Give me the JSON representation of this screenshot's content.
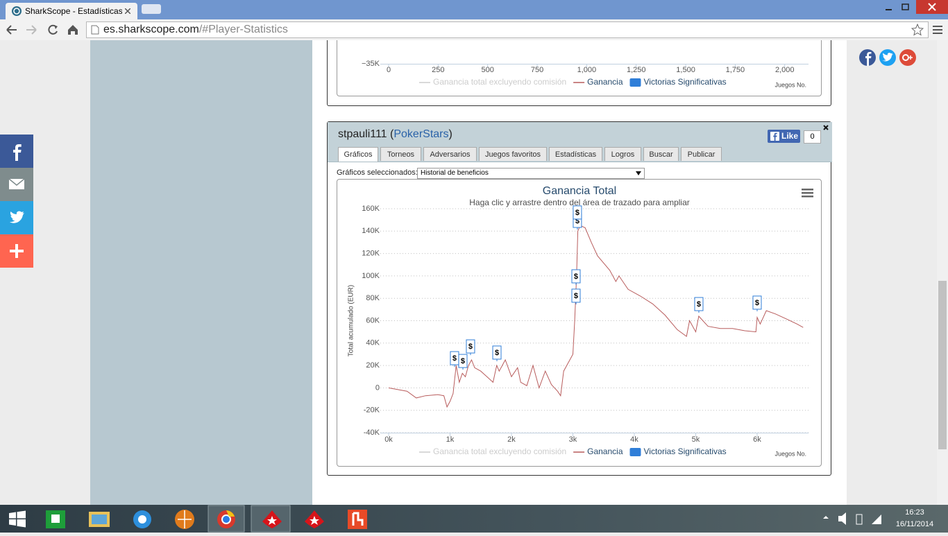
{
  "browser": {
    "tab_title": "SharkScope - Estadísticas",
    "url_host": "es.sharkscope.com",
    "url_path": "/#Player-Statistics"
  },
  "player": {
    "name": "stpauli111",
    "open": "(",
    "network": "PokerStars",
    "close": ")",
    "like": "Like",
    "like_count": 0
  },
  "tabs": [
    "Gráficos",
    "Torneos",
    "Adversarios",
    "Juegos favoritos",
    "Estadísticas",
    "Logros",
    "Buscar",
    "Publicar"
  ],
  "selector": {
    "label": "Gráficos seleccionados:",
    "value": "Historial de beneficios"
  },
  "taskbar": {
    "time": "16:23",
    "date": "16/11/2014"
  },
  "chart_data": [
    {
      "type": "line",
      "x_label": "Juegos No.",
      "xlim": [
        0,
        2120
      ],
      "xticks": [
        0,
        250,
        500,
        750,
        {
          "value": 1000,
          "label": "1,000"
        },
        {
          "value": 1250,
          "label": "1,250"
        },
        {
          "value": 1500,
          "label": "1,500"
        },
        {
          "value": 1750,
          "label": "1,750"
        },
        {
          "value": 2000,
          "label": "2,000"
        }
      ],
      "yticks": [
        {
          "value": -35000,
          "label": "−35K"
        }
      ],
      "series": [
        {
          "name": "Ganancia total excluyendo comisión",
          "color": "#cccccc",
          "visible": false
        },
        {
          "name": "Ganancia",
          "color": "#b85c5c"
        },
        {
          "name": "Victorias Significativas",
          "type": "flag",
          "color": "#2f7ed8"
        }
      ]
    },
    {
      "type": "line",
      "title": "Ganancia Total",
      "subtitle": "Haga clic y arrastre dentro del área de trazado para ampliar",
      "y_label": "Total acumulado (EUR)",
      "x_label": "Juegos No.",
      "xlim": [
        0,
        6840
      ],
      "ylim": [
        -40000,
        160000
      ],
      "grid": true,
      "xticks": [
        {
          "value": 0,
          "label": "0k"
        },
        {
          "value": 1000,
          "label": "1k"
        },
        {
          "value": 2000,
          "label": "2k"
        },
        {
          "value": 3000,
          "label": "3k"
        },
        {
          "value": 4000,
          "label": "4k"
        },
        {
          "value": 5000,
          "label": "5k"
        },
        {
          "value": 6000,
          "label": "6k"
        }
      ],
      "yticks": [
        {
          "value": -40000,
          "label": "-40K"
        },
        {
          "value": -20000,
          "label": "-20K"
        },
        0,
        {
          "value": 20000,
          "label": "20K"
        },
        {
          "value": 40000,
          "label": "40K"
        },
        {
          "value": 60000,
          "label": "60K"
        },
        {
          "value": 80000,
          "label": "80K"
        },
        {
          "value": 100000,
          "label": "100K"
        },
        {
          "value": 120000,
          "label": "120K"
        },
        {
          "value": 140000,
          "label": "140K"
        },
        {
          "value": 160000,
          "label": "160K"
        }
      ],
      "series": [
        {
          "name": "Ganancia total excluyendo comisión",
          "color": "#cccccc",
          "visible": false
        },
        {
          "name": "Ganancia",
          "color": "#b85c5c",
          "x": [
            0,
            100,
            300,
            450,
            600,
            800,
            900,
            950,
            1000,
            1050,
            1100,
            1150,
            1200,
            1250,
            1300,
            1350,
            1400,
            1500,
            1600,
            1700,
            1760,
            1800,
            1900,
            2000,
            2100,
            2150,
            2250,
            2350,
            2450,
            2550,
            2650,
            2750,
            2800,
            2850,
            2950,
            3000,
            3030,
            3060,
            3080,
            3120,
            3200,
            3300,
            3400,
            3600,
            3700,
            3750,
            3900,
            4100,
            4300,
            4500,
            4700,
            4850,
            4900,
            5000,
            5050,
            5200,
            5400,
            5600,
            5800,
            5980,
            6000,
            6050,
            6150,
            6300,
            6500,
            6650,
            6750
          ],
          "values": [
            0,
            -1000,
            -3000,
            -9000,
            -7000,
            -6000,
            -7000,
            -17000,
            -12000,
            -5000,
            20000,
            5000,
            13000,
            10000,
            20000,
            25000,
            18000,
            15000,
            10000,
            5000,
            20000,
            15000,
            25000,
            10000,
            18000,
            5000,
            2000,
            20000,
            0,
            15000,
            3000,
            -3000,
            -7000,
            15000,
            25000,
            30000,
            60000,
            100000,
            140000,
            145000,
            143000,
            130000,
            118000,
            105000,
            95000,
            100000,
            88000,
            82000,
            75000,
            65000,
            52000,
            46000,
            60000,
            50000,
            64000,
            55000,
            53000,
            53000,
            51000,
            50000,
            63000,
            57000,
            69000,
            66000,
            61000,
            57000,
            54000
          ]
        },
        {
          "name": "Victorias Significativas",
          "type": "flag",
          "color": "#2f7ed8",
          "marker_label": "$",
          "x": [
            1073,
            1209,
            1333,
            1763,
            3051,
            3051,
            3073,
            3073,
            5051,
            6000
          ],
          "values": [
            18800,
            16300,
            29300,
            23800,
            74600,
            91900,
            141400,
            148900,
            67100,
            68400
          ]
        }
      ]
    }
  ]
}
